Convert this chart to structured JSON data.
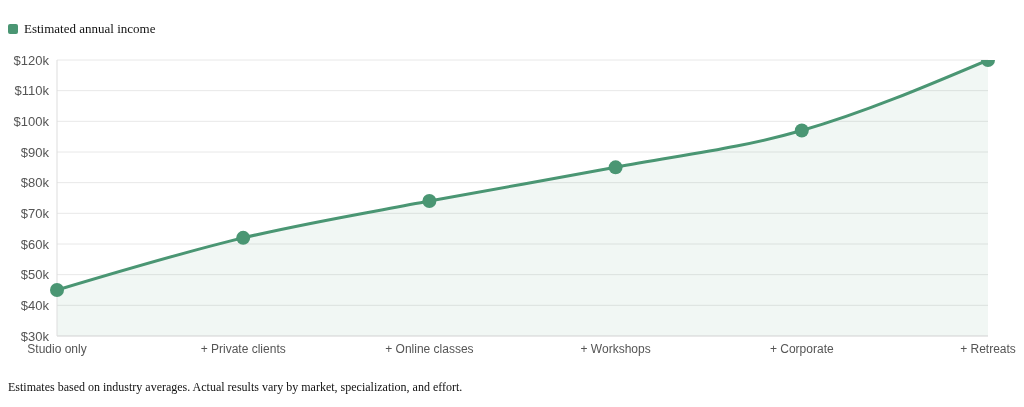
{
  "chart_data": {
    "type": "area",
    "categories": [
      "Studio only",
      "+ Private clients",
      "+ Online classes",
      "+ Workshops",
      "+ Corporate",
      "+ Retreats"
    ],
    "series": [
      {
        "name": "Estimated annual income",
        "color": "#4a9673",
        "values": [
          45000,
          62000,
          74000,
          85000,
          97000,
          120000
        ]
      }
    ],
    "ylim": [
      30000,
      120000
    ],
    "yticks": [
      {
        "value": 30000,
        "label": "$30k"
      },
      {
        "value": 40000,
        "label": "$40k"
      },
      {
        "value": 50000,
        "label": "$50k"
      },
      {
        "value": 60000,
        "label": "$60k"
      },
      {
        "value": 70000,
        "label": "$70k"
      },
      {
        "value": 80000,
        "label": "$80k"
      },
      {
        "value": 90000,
        "label": "$90k"
      },
      {
        "value": 100000,
        "label": "$100k"
      },
      {
        "value": 110000,
        "label": "$110k"
      },
      {
        "value": 120000,
        "label": "$120k"
      }
    ],
    "grid": "y",
    "legend": "top left",
    "marker": "circle",
    "line_style": "solid",
    "annotations": [
      "Estimates based on industry averages. Actual results vary by market, specialization, and effort."
    ]
  }
}
